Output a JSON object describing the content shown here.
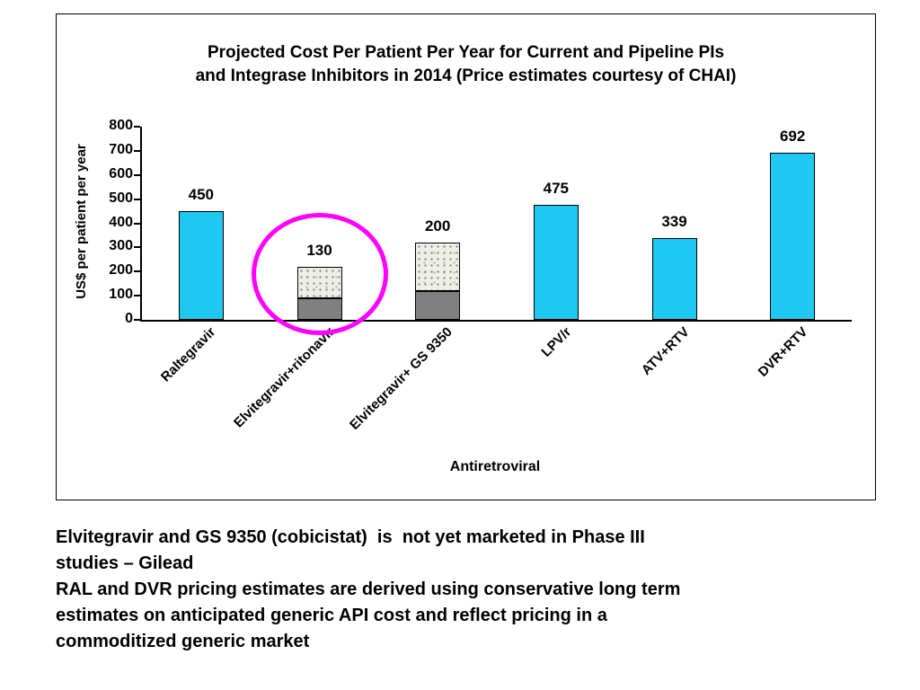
{
  "chart_data": {
    "type": "bar",
    "title": "Projected Cost Per Patient Per Year for Current and Pipeline PIs\nand Integrase Inhibitors in 2014 (Price estimates courtesy of CHAI)",
    "xlabel": "Antiretroviral",
    "ylabel": "US$ per patient per year",
    "ylim": [
      0,
      800
    ],
    "yticks": [
      0,
      100,
      200,
      300,
      400,
      500,
      600,
      700,
      800
    ],
    "grid": false,
    "legend": "none",
    "categories": [
      "Raltegravir",
      "Elvitegravir+ritonavir",
      "Elvitegravir+ GS 9350",
      "LPV/r",
      "ATV+RTV",
      "DVR+RTV"
    ],
    "bars": [
      {
        "label": "Raltegravir",
        "segments": [
          {
            "value": 450,
            "style": "cyan"
          }
        ]
      },
      {
        "label": "Elvitegravir+ritonavir",
        "segments": [
          {
            "value": 90,
            "style": "gray"
          },
          {
            "value": 130,
            "style": "speckled"
          }
        ]
      },
      {
        "label": "Elvitegravir+ GS 9350",
        "segments": [
          {
            "value": 120,
            "style": "gray"
          },
          {
            "value": 200,
            "style": "speckled"
          }
        ]
      },
      {
        "label": "LPV/r",
        "segments": [
          {
            "value": 475,
            "style": "cyan"
          }
        ]
      },
      {
        "label": "ATV+RTV",
        "segments": [
          {
            "value": 339,
            "style": "cyan"
          }
        ]
      },
      {
        "label": "DVR+RTV",
        "segments": [
          {
            "value": 692,
            "style": "cyan"
          }
        ]
      }
    ],
    "highlight_ellipse": {
      "category_index": 1,
      "color": "#ff00ff"
    },
    "colors": {
      "cyan": "#1ec8f0",
      "gray": "#808080",
      "speckle_bg": "#efefe6",
      "axis": "#000000"
    }
  },
  "footer": {
    "text": "Elvitegravir and GS 9350 (cobicistat)  is  not yet marketed in Phase III\nstudies – Gilead\nRAL and DVR pricing estimates are derived using conservative long term\nestimates on anticipated generic API cost and reflect pricing in a\ncommoditized generic market"
  }
}
